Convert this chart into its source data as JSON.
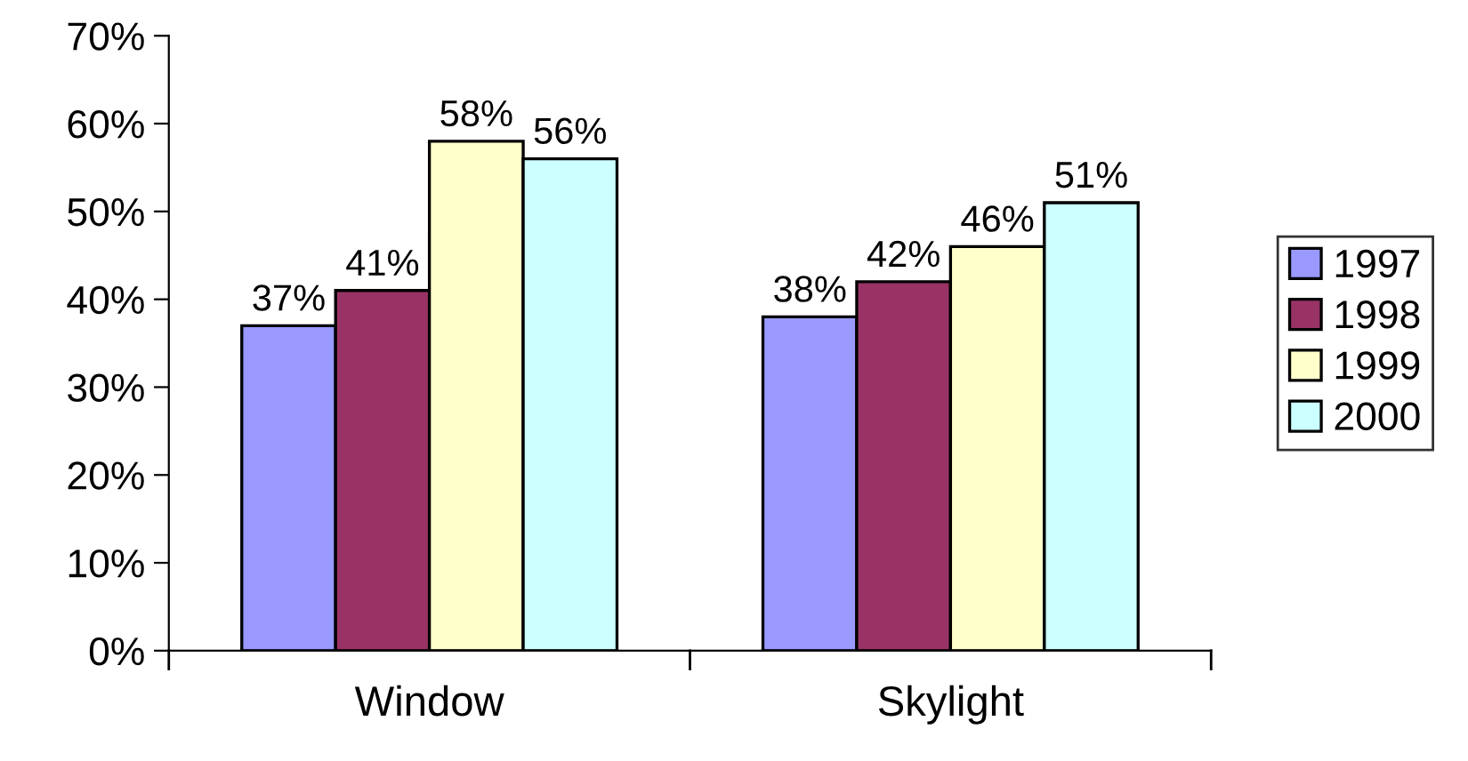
{
  "chart_data": {
    "type": "bar",
    "categories": [
      "Window",
      "Skylight"
    ],
    "series": [
      {
        "name": "1997",
        "color": "#9999ff",
        "values": [
          37,
          38
        ]
      },
      {
        "name": "1998",
        "color": "#993366",
        "values": [
          41,
          42
        ]
      },
      {
        "name": "1999",
        "color": "#ffffcc",
        "values": [
          58,
          46
        ]
      },
      {
        "name": "2000",
        "color": "#ccffff",
        "values": [
          56,
          51
        ]
      }
    ],
    "ylim": [
      0,
      70
    ],
    "yticks": [
      {
        "value": 0,
        "label": "0%"
      },
      {
        "value": 10,
        "label": "10%"
      },
      {
        "value": 20,
        "label": "20%"
      },
      {
        "value": 30,
        "label": "30%"
      },
      {
        "value": 40,
        "label": "40%"
      },
      {
        "value": 50,
        "label": "50%"
      },
      {
        "value": 60,
        "label": "60%"
      },
      {
        "value": 70,
        "label": "70%"
      }
    ],
    "value_labels": [
      [
        "37%",
        "38%"
      ],
      [
        "41%",
        "42%"
      ],
      [
        "58%",
        "46%"
      ],
      [
        "56%",
        "51%"
      ]
    ],
    "grid": false,
    "legend": "right"
  }
}
